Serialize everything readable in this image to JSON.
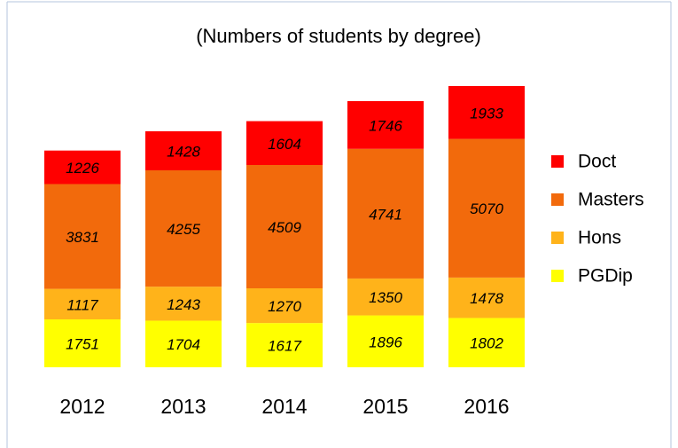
{
  "chart_data": {
    "type": "stacked-bar",
    "title": "(Numbers of students by degree)",
    "categories": [
      "2012",
      "2013",
      "2014",
      "2015",
      "2016"
    ],
    "series": [
      {
        "name": "PGDip",
        "color": "#ffff00",
        "values": [
          1751,
          1704,
          1617,
          1896,
          1802
        ]
      },
      {
        "name": "Hons",
        "color": "#ffb31a",
        "values": [
          1117,
          1243,
          1270,
          1350,
          1478
        ]
      },
      {
        "name": "Masters",
        "color": "#f26a0c",
        "values": [
          3831,
          4255,
          4509,
          4741,
          5070
        ]
      },
      {
        "name": "Doct",
        "color": "#ff0000",
        "values": [
          1226,
          1428,
          1604,
          1746,
          1933
        ]
      }
    ],
    "legend": "right"
  }
}
